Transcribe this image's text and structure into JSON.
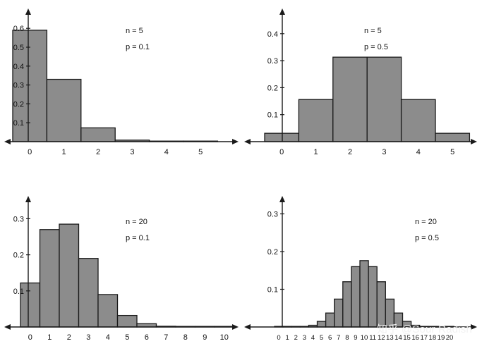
{
  "watermark": "知乎 @Sour Radish",
  "chart_data": [
    {
      "type": "bar",
      "n_label": "n = 5",
      "p_label": "p = 0.1",
      "categories": [
        "0",
        "1",
        "2",
        "3",
        "4",
        "5"
      ],
      "values": [
        0.59,
        0.33,
        0.073,
        0.0081,
        0.00045,
        1e-05
      ],
      "yticks": [
        "0.1",
        "0.2",
        "0.3",
        "0.4",
        "0.5",
        "0.6"
      ],
      "ylim": [
        0,
        0.64
      ]
    },
    {
      "type": "bar",
      "n_label": "n = 5",
      "p_label": "p = 0.5",
      "categories": [
        "0",
        "1",
        "2",
        "3",
        "4",
        "5"
      ],
      "values": [
        0.031,
        0.156,
        0.313,
        0.313,
        0.156,
        0.031
      ],
      "yticks": [
        "0.1",
        "0.2",
        "0.3",
        "0.4"
      ],
      "ylim": [
        0,
        0.43
      ]
    },
    {
      "type": "bar",
      "n_label": "n = 20",
      "p_label": "p = 0.1",
      "categories": [
        "0",
        "1",
        "2",
        "3",
        "4",
        "5",
        "6",
        "7",
        "8",
        "9",
        "10"
      ],
      "values": [
        0.122,
        0.27,
        0.285,
        0.19,
        0.09,
        0.032,
        0.009,
        0.002,
        0.0004,
        0.0001,
        0.0
      ],
      "yticks": [
        "0.1",
        "0.2",
        "0.3"
      ],
      "ylim": [
        0,
        0.32
      ]
    },
    {
      "type": "bar",
      "n_label": "n = 20",
      "p_label": "p = 0.5",
      "categories": [
        "0",
        "1",
        "2",
        "3",
        "4",
        "5",
        "6",
        "7",
        "8",
        "9",
        "10",
        "11",
        "12",
        "13",
        "14",
        "15",
        "16",
        "17",
        "18",
        "19",
        "20"
      ],
      "values": [
        1e-06,
        2e-05,
        0.0002,
        0.0011,
        0.0046,
        0.0148,
        0.037,
        0.074,
        0.12,
        0.16,
        0.176,
        0.16,
        0.12,
        0.074,
        0.037,
        0.0148,
        0.0046,
        0.0011,
        0.0002,
        2e-05,
        1e-06
      ],
      "yticks": [
        "0.1",
        "0.2",
        "0.3"
      ],
      "ylim": [
        0,
        0.32
      ]
    }
  ]
}
